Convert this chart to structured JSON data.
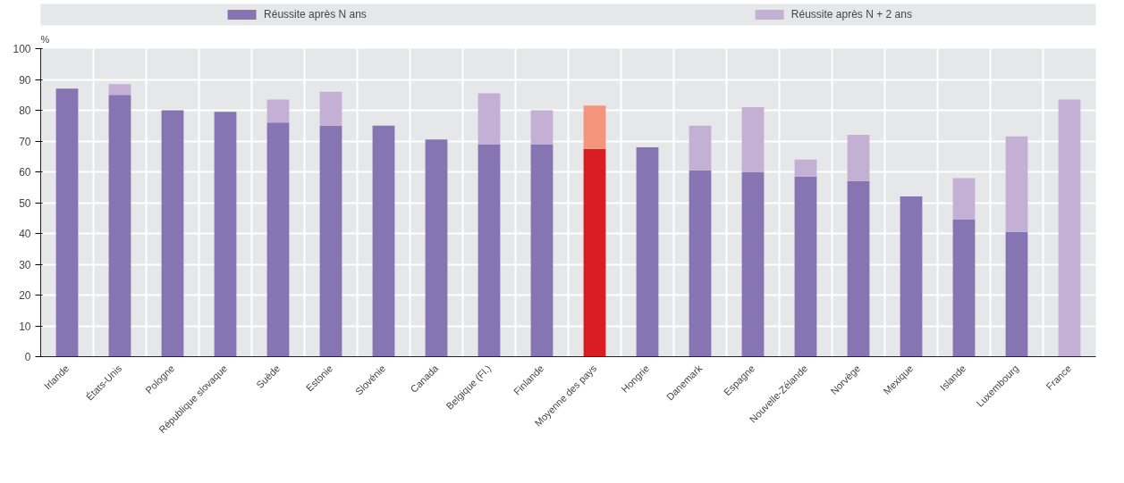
{
  "chart_data": {
    "type": "bar",
    "stacked": true,
    "ylabel": "%",
    "categories": [
      "Irlande",
      "États-Unis",
      "Pologne",
      "République slovaque",
      "Suède",
      "Estonie",
      "Slovénie",
      "Canada",
      "Belgique (Fl.)",
      "Finlande",
      "Moyenne des pays",
      "Hongrie",
      "Danemark",
      "Espagne",
      "Nouvelle-Zélande",
      "Norvège",
      "Mexique",
      "Islande",
      "Luxembourg",
      "France"
    ],
    "series": [
      {
        "name": "Réussite après N ans",
        "color": "#8774b3",
        "colors": [
          "#8774b3",
          "#8774b3",
          "#8774b3",
          "#8774b3",
          "#8774b3",
          "#8774b3",
          "#8774b3",
          "#8774b3",
          "#8774b3",
          "#8774b3",
          "#dc1c24",
          "#8774b3",
          "#8774b3",
          "#8774b3",
          "#8774b3",
          "#8774b3",
          "#8774b3",
          "#8774b3",
          "#8774b3",
          "#8774b3"
        ],
        "values": [
          87,
          85,
          80,
          79.5,
          76,
          75,
          75,
          70.5,
          69,
          69,
          67.5,
          68,
          60.5,
          60,
          58.5,
          57,
          52,
          44.5,
          40.5,
          null
        ]
      },
      {
        "name": "Réussite après N + 2 ans",
        "color": "#c5b0d5",
        "colors": [
          "#c5b0d5",
          "#c5b0d5",
          "#c5b0d5",
          "#c5b0d5",
          "#c5b0d5",
          "#c5b0d5",
          "#c5b0d5",
          "#c5b0d5",
          "#c5b0d5",
          "#c5b0d5",
          "#f4947a",
          "#c5b0d5",
          "#c5b0d5",
          "#c5b0d5",
          "#c5b0d5",
          "#c5b0d5",
          "#c5b0d5",
          "#c5b0d5",
          "#c5b0d5",
          "#c5b0d5"
        ],
        "values": [
          null,
          3.5,
          null,
          null,
          7.5,
          11,
          null,
          null,
          16.5,
          11,
          14,
          null,
          14.5,
          21,
          5.5,
          15,
          null,
          13.5,
          31,
          83.5
        ]
      }
    ],
    "ylim": [
      0,
      100
    ],
    "yticks": [
      0,
      10,
      20,
      30,
      40,
      50,
      60,
      70,
      80,
      90,
      100
    ],
    "grid": true,
    "legend": "top"
  }
}
